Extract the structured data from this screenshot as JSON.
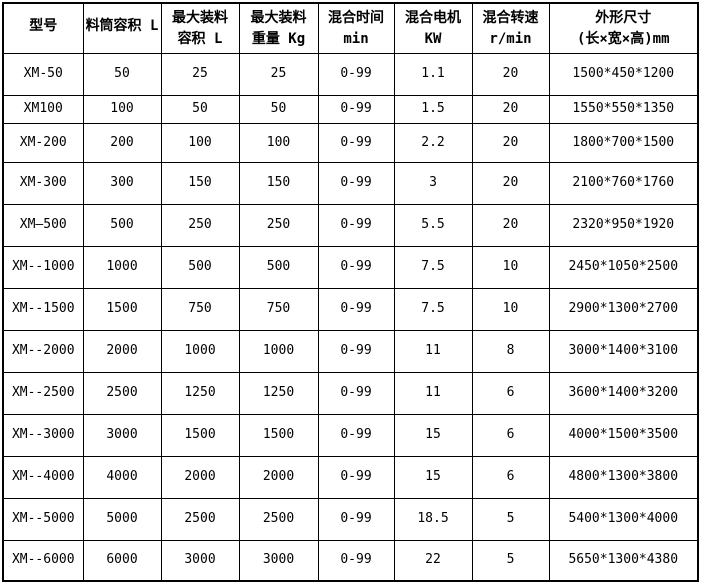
{
  "page": {
    "background_color": "#ffffff",
    "border_color": "#000000",
    "text_color": "#000000"
  },
  "chart_data": {
    "type": "table",
    "columns": [
      {
        "line1": "型号",
        "line2": ""
      },
      {
        "line1": "料筒容积 L",
        "line2": ""
      },
      {
        "line1": "最大装料",
        "line2": "容积 L"
      },
      {
        "line1": "最大装料",
        "line2": "重量 Kg"
      },
      {
        "line1": "混合时间",
        "line2": "min"
      },
      {
        "line1": "混合电机",
        "line2": "KW"
      },
      {
        "line1": "混合转速",
        "line2": "r/min"
      },
      {
        "line1": "外形尺寸",
        "line2": "(长×宽×高)mm"
      }
    ],
    "rows": [
      [
        "XM-50",
        "50",
        "25",
        "25",
        "0-99",
        "1.1",
        "20",
        "1500*450*1200"
      ],
      [
        "XM100",
        "100",
        "50",
        "50",
        "0-99",
        "1.5",
        "20",
        "1550*550*1350"
      ],
      [
        "XM-200",
        "200",
        "100",
        "100",
        "0-99",
        "2.2",
        "20",
        "1800*700*1500"
      ],
      [
        "XM-300",
        "300",
        "150",
        "150",
        "0-99",
        "3",
        "20",
        "2100*760*1760"
      ],
      [
        "XM—500",
        "500",
        "250",
        "250",
        "0-99",
        "5.5",
        "20",
        "2320*950*1920"
      ],
      [
        "XM--1000",
        "1000",
        "500",
        "500",
        "0-99",
        "7.5",
        "10",
        "2450*1050*2500"
      ],
      [
        "XM--1500",
        "1500",
        "750",
        "750",
        "0-99",
        "7.5",
        "10",
        "2900*1300*2700"
      ],
      [
        "XM--2000",
        "2000",
        "1000",
        "1000",
        "0-99",
        "11",
        "8",
        "3000*1400*3100"
      ],
      [
        "XM--2500",
        "2500",
        "1250",
        "1250",
        "0-99",
        "11",
        "6",
        "3600*1400*3200"
      ],
      [
        "XM--3000",
        "3000",
        "1500",
        "1500",
        "0-99",
        "15",
        "6",
        "4000*1500*3500"
      ],
      [
        "XM--4000",
        "4000",
        "2000",
        "2000",
        "0-99",
        "15",
        "6",
        "4800*1300*3800"
      ],
      [
        "XM--5000",
        "5000",
        "2500",
        "2500",
        "0-99",
        "18.5",
        "5",
        "5400*1300*4000"
      ],
      [
        "XM--6000",
        "6000",
        "3000",
        "3000",
        "0-99",
        "22",
        "5",
        "5650*1300*4380"
      ]
    ]
  }
}
